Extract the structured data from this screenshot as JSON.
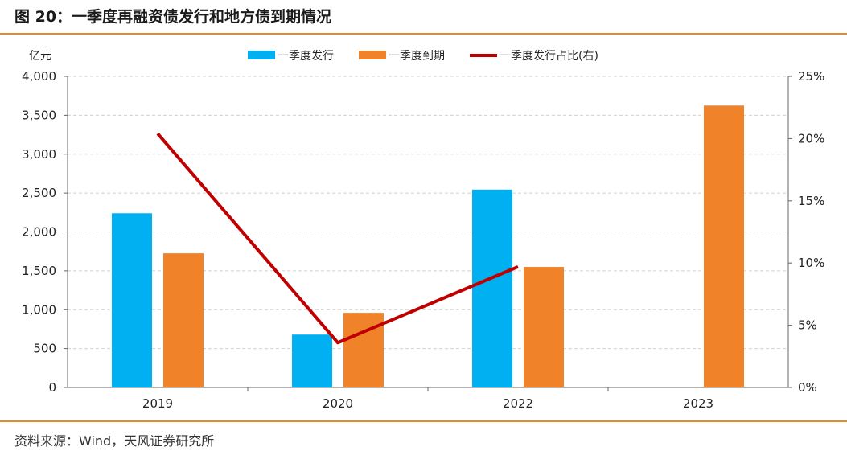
{
  "header": {
    "title": "图 20：一季度再融资债发行和地方债到期情况"
  },
  "footer": {
    "source": "资料来源：Wind，天风证券研究所"
  },
  "chart_data": {
    "type": "bar",
    "categories": [
      "2019",
      "2020",
      "2022",
      "2023"
    ],
    "series": [
      {
        "name": "一季度发行",
        "type": "bar",
        "axis": "left",
        "color": "#00b0f0",
        "values": [
          2240,
          680,
          2545,
          null
        ]
      },
      {
        "name": "一季度到期",
        "type": "bar",
        "axis": "left",
        "color": "#f0822a",
        "values": [
          1725,
          960,
          1550,
          3625
        ]
      },
      {
        "name": "一季度发行占比(右)",
        "type": "line",
        "axis": "right",
        "color": "#c00000",
        "values": [
          20.4,
          3.6,
          9.7,
          null
        ]
      }
    ],
    "ylabel": "亿元",
    "ylim": [
      0,
      4000
    ],
    "yticks": [
      "0",
      "500",
      "1,000",
      "1,500",
      "2,000",
      "2,500",
      "3,000",
      "3,500",
      "4,000"
    ],
    "y2lim": [
      0,
      25
    ],
    "y2ticks": [
      "0%",
      "5%",
      "10%",
      "15%",
      "20%",
      "25%"
    ],
    "grid": true,
    "legend_position": "top-center"
  }
}
